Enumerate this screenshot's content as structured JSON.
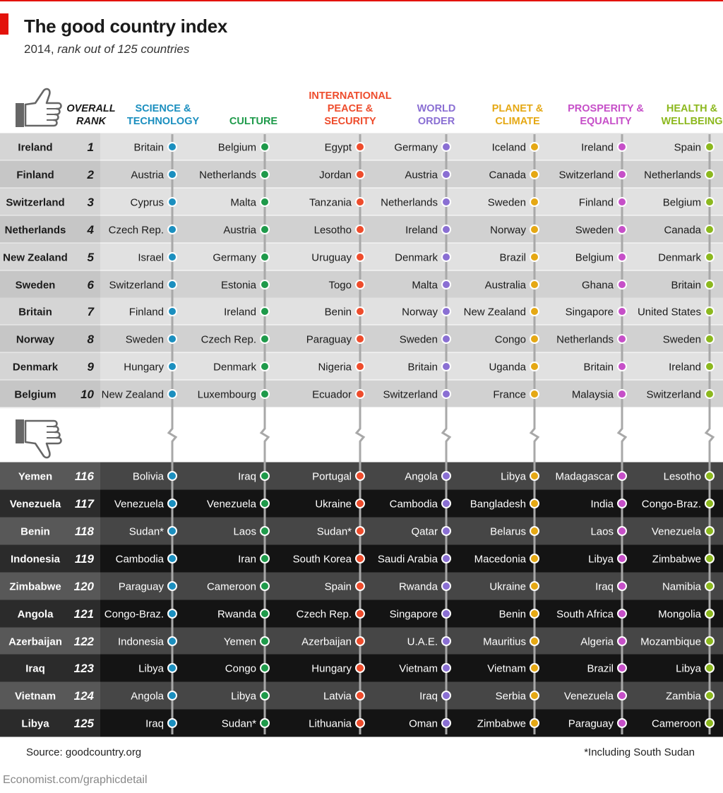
{
  "title": "The good country index",
  "subtitle_prefix": "2014, ",
  "subtitle_italic": "rank out of 125 countries",
  "source": "Source: goodcountry.org",
  "footnote": "*Including South Sudan",
  "credit": "Economist.com/graphicdetail",
  "icons": {
    "top": "thumbs-up-icon",
    "bottom": "thumbs-down-icon"
  },
  "colors": {
    "top_row_a": "#e1e1e1",
    "top_row_b": "#d1d1d1",
    "bottom_row_a": "#464646",
    "bottom_row_b": "#141414",
    "column_line": "#a8a8a8"
  },
  "chart_data": {
    "type": "table",
    "overall_header": [
      "OVERALL",
      "RANK"
    ],
    "categories": [
      {
        "label": [
          "SCIENCE &",
          "TECHNOLOGY"
        ],
        "color": "#1b8fbf"
      },
      {
        "label": [
          "CULTURE"
        ],
        "color": "#1e9a4a"
      },
      {
        "label": [
          "INTERNATIONAL",
          "PEACE &",
          "SECURITY"
        ],
        "color": "#ee4c2c"
      },
      {
        "label": [
          "WORLD",
          "ORDER"
        ],
        "color": "#8a6fd3"
      },
      {
        "label": [
          "PLANET &",
          "CLIMATE"
        ],
        "color": "#e5a814"
      },
      {
        "label": [
          "PROSPERITY &",
          "EQUALITY"
        ],
        "color": "#c64fc8"
      },
      {
        "label": [
          "HEALTH &",
          "WELLBEING"
        ],
        "color": "#8cb81e"
      }
    ],
    "top_rows": [
      {
        "country": "Ireland",
        "rank": 1,
        "values": [
          "Britain",
          "Belgium",
          "Egypt",
          "Germany",
          "Iceland",
          "Ireland",
          "Spain"
        ]
      },
      {
        "country": "Finland",
        "rank": 2,
        "values": [
          "Austria",
          "Netherlands",
          "Jordan",
          "Austria",
          "Canada",
          "Switzerland",
          "Netherlands"
        ]
      },
      {
        "country": "Switzerland",
        "rank": 3,
        "values": [
          "Cyprus",
          "Malta",
          "Tanzania",
          "Netherlands",
          "Sweden",
          "Finland",
          "Belgium"
        ]
      },
      {
        "country": "Netherlands",
        "rank": 4,
        "values": [
          "Czech Rep.",
          "Austria",
          "Lesotho",
          "Ireland",
          "Norway",
          "Sweden",
          "Canada"
        ]
      },
      {
        "country": "New Zealand",
        "rank": 5,
        "values": [
          "Israel",
          "Germany",
          "Uruguay",
          "Denmark",
          "Brazil",
          "Belgium",
          "Denmark"
        ]
      },
      {
        "country": "Sweden",
        "rank": 6,
        "values": [
          "Switzerland",
          "Estonia",
          "Togo",
          "Malta",
          "Australia",
          "Ghana",
          "Britain"
        ]
      },
      {
        "country": "Britain",
        "rank": 7,
        "values": [
          "Finland",
          "Ireland",
          "Benin",
          "Norway",
          "New Zealand",
          "Singapore",
          "United States"
        ]
      },
      {
        "country": "Norway",
        "rank": 8,
        "values": [
          "Sweden",
          "Czech Rep.",
          "Paraguay",
          "Sweden",
          "Congo",
          "Netherlands",
          "Sweden"
        ]
      },
      {
        "country": "Denmark",
        "rank": 9,
        "values": [
          "Hungary",
          "Denmark",
          "Nigeria",
          "Britain",
          "Uganda",
          "Britain",
          "Ireland"
        ]
      },
      {
        "country": "Belgium",
        "rank": 10,
        "values": [
          "New Zealand",
          "Luxembourg",
          "Ecuador",
          "Switzerland",
          "France",
          "Malaysia",
          "Switzerland"
        ]
      }
    ],
    "bottom_rows": [
      {
        "country": "Yemen",
        "rank": 116,
        "values": [
          "Bolivia",
          "Iraq",
          "Portugal",
          "Angola",
          "Libya",
          "Madagascar",
          "Lesotho"
        ]
      },
      {
        "country": "Venezuela",
        "rank": 117,
        "values": [
          "Venezuela",
          "Venezuela",
          "Ukraine",
          "Cambodia",
          "Bangladesh",
          "India",
          "Congo-Braz."
        ]
      },
      {
        "country": "Benin",
        "rank": 118,
        "values": [
          "Sudan*",
          "Laos",
          "Sudan*",
          "Qatar",
          "Belarus",
          "Laos",
          "Venezuela"
        ]
      },
      {
        "country": "Indonesia",
        "rank": 119,
        "values": [
          "Cambodia",
          "Iran",
          "South Korea",
          "Saudi Arabia",
          "Macedonia",
          "Libya",
          "Zimbabwe"
        ]
      },
      {
        "country": "Zimbabwe",
        "rank": 120,
        "values": [
          "Paraguay",
          "Cameroon",
          "Spain",
          "Rwanda",
          "Ukraine",
          "Iraq",
          "Namibia"
        ]
      },
      {
        "country": "Angola",
        "rank": 121,
        "values": [
          "Congo-Braz.",
          "Rwanda",
          "Czech Rep.",
          "Singapore",
          "Benin",
          "South Africa",
          "Mongolia"
        ]
      },
      {
        "country": "Azerbaijan",
        "rank": 122,
        "values": [
          "Indonesia",
          "Yemen",
          "Azerbaijan",
          "U.A.E.",
          "Mauritius",
          "Algeria",
          "Mozambique"
        ]
      },
      {
        "country": "Iraq",
        "rank": 123,
        "values": [
          "Libya",
          "Congo",
          "Hungary",
          "Vietnam",
          "Vietnam",
          "Brazil",
          "Libya"
        ]
      },
      {
        "country": "Vietnam",
        "rank": 124,
        "values": [
          "Angola",
          "Libya",
          "Latvia",
          "Iraq",
          "Serbia",
          "Venezuela",
          "Zambia"
        ]
      },
      {
        "country": "Libya",
        "rank": 125,
        "values": [
          "Iraq",
          "Sudan*",
          "Lithuania",
          "Oman",
          "Zimbabwe",
          "Paraguay",
          "Cameroon"
        ]
      }
    ]
  }
}
